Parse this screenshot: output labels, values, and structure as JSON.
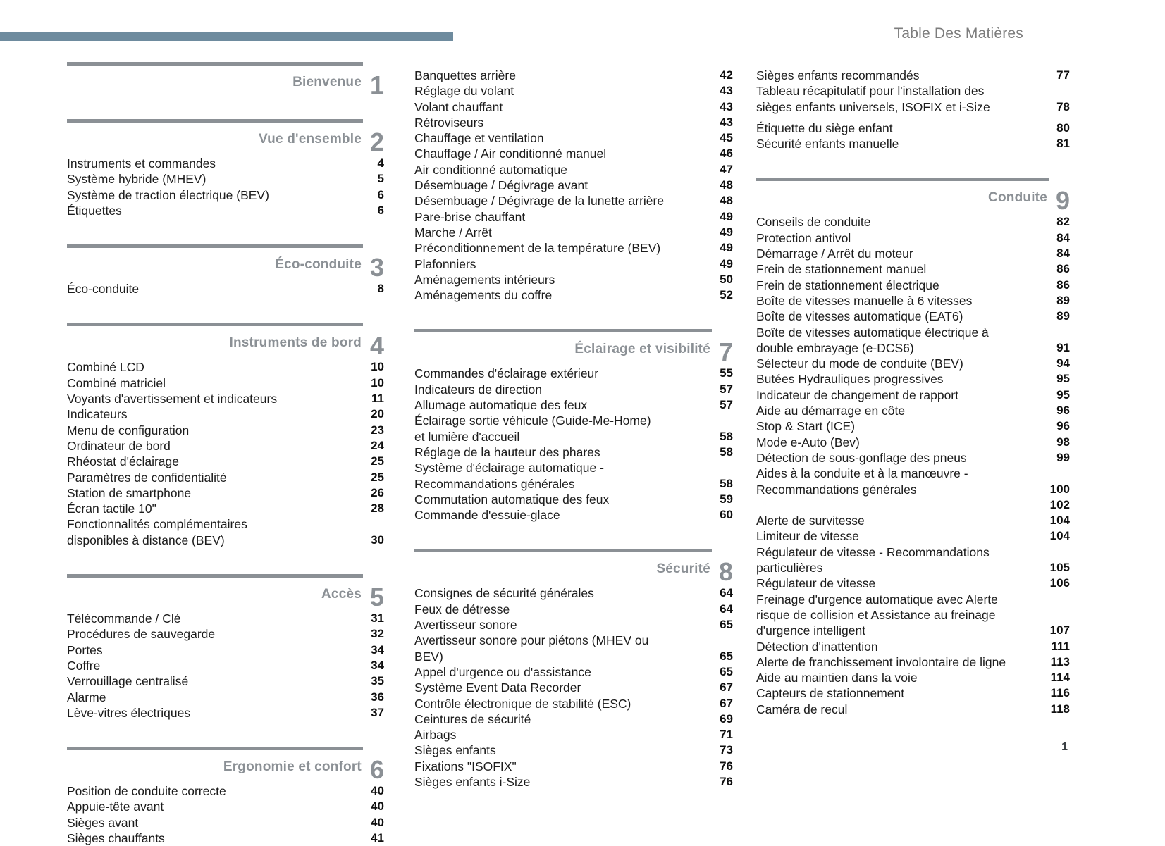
{
  "header": {
    "title": "Table Des Matières"
  },
  "footer": {
    "page_number": "1"
  },
  "colors": {
    "accent_bar": "#6e8b9e",
    "section_gray": "#8b9095",
    "item_text": "#1c1c1c"
  },
  "columns": [
    {
      "blocks": [
        {
          "type": "section",
          "title": "Bienvenue",
          "num": "1",
          "items": []
        },
        {
          "type": "section",
          "title": "Vue d'ensemble",
          "num": "2",
          "items": [
            {
              "label": "Instruments et commandes",
              "page": "4"
            },
            {
              "label": "Système hybride (MHEV)",
              "page": "5"
            },
            {
              "label": "Système de traction électrique (BEV)",
              "page": "6"
            },
            {
              "label": "Étiquettes",
              "page": "6"
            }
          ]
        },
        {
          "type": "section",
          "title": "Éco-conduite",
          "num": "3",
          "items": [
            {
              "label": "Éco-conduite",
              "page": "8"
            }
          ]
        },
        {
          "type": "section",
          "title": "Instruments de bord",
          "num": "4",
          "items": [
            {
              "label": "Combiné LCD",
              "page": "10"
            },
            {
              "label": "Combiné matriciel",
              "page": "10"
            },
            {
              "label": "Voyants d'avertissement et indicateurs",
              "page": "11"
            },
            {
              "label": "Indicateurs",
              "page": "20"
            },
            {
              "label": "Menu de configuration",
              "page": "23"
            },
            {
              "label": "Ordinateur de bord",
              "page": "24"
            },
            {
              "label": "Rhéostat d'éclairage",
              "page": "25"
            },
            {
              "label": "Paramètres de confidentialité",
              "page": "25"
            },
            {
              "label": "Station de smartphone",
              "page": "26"
            },
            {
              "label": "Écran tactile 10\"",
              "page": "28"
            },
            {
              "label": "Fonctionnalités complémentaires\ndisponibles à distance (BEV)",
              "page": "30"
            }
          ]
        },
        {
          "type": "section",
          "title": "Accès",
          "num": "5",
          "items": [
            {
              "label": "Télécommande / Clé",
              "page": "31"
            },
            {
              "label": "Procédures de sauvegarde",
              "page": "32"
            },
            {
              "label": "Portes",
              "page": "34"
            },
            {
              "label": "Coffre",
              "page": "34"
            },
            {
              "label": "Verrouillage centralisé",
              "page": "35"
            },
            {
              "label": "Alarme",
              "page": "36"
            },
            {
              "label": "Lève-vitres électriques",
              "page": "37"
            }
          ]
        },
        {
          "type": "section",
          "title": "Ergonomie et confort",
          "num": "6",
          "items": [
            {
              "label": "Position de conduite correcte",
              "page": "40"
            },
            {
              "label": "Appuie-tête avant",
              "page": "40"
            },
            {
              "label": "Sièges avant",
              "page": "40"
            },
            {
              "label": "Sièges chauffants",
              "page": "41"
            }
          ]
        }
      ]
    },
    {
      "blocks": [
        {
          "type": "continuation",
          "items": [
            {
              "label": "Banquettes arrière",
              "page": "42"
            },
            {
              "label": "Réglage du volant",
              "page": "43"
            },
            {
              "label": "Volant chauffant",
              "page": "43"
            },
            {
              "label": "Rétroviseurs",
              "page": "43"
            },
            {
              "label": "Chauffage et ventilation",
              "page": "45"
            },
            {
              "label": "Chauffage / Air conditionné manuel",
              "page": "46"
            },
            {
              "label": "Air conditionné automatique",
              "page": "47"
            },
            {
              "label": "Désembuage / Dégivrage avant",
              "page": "48"
            },
            {
              "label": "Désembuage / Dégivrage de la lunette arrière",
              "page": "48"
            },
            {
              "label": "Pare-brise chauffant",
              "page": "49"
            },
            {
              "label": "Marche / Arrêt",
              "page": "49"
            },
            {
              "label": "Préconditionnement de la température (BEV)",
              "page": "49"
            },
            {
              "label": "Plafonniers",
              "page": "49"
            },
            {
              "label": "Aménagements intérieurs",
              "page": "50"
            },
            {
              "label": "Aménagements du coffre",
              "page": "52"
            }
          ]
        },
        {
          "type": "section",
          "title": "Éclairage et visibilité",
          "num": "7",
          "items": [
            {
              "label": "Commandes d'éclairage extérieur",
              "page": "55"
            },
            {
              "label": "Indicateurs de direction",
              "page": "57"
            },
            {
              "label": "Allumage automatique des feux",
              "page": "57"
            },
            {
              "label": "Éclairage sortie véhicule (Guide-Me-Home)\net lumière d'accueil",
              "page": "58"
            },
            {
              "label": "Réglage de la hauteur des phares",
              "page": "58"
            },
            {
              "label": "Système d'éclairage automatique -\nRecommandations générales",
              "page": "58"
            },
            {
              "label": "Commutation automatique des feux",
              "page": "59"
            },
            {
              "label": "Commande d'essuie-glace",
              "page": "60"
            }
          ]
        },
        {
          "type": "section",
          "title": "Sécurité",
          "num": "8",
          "items": [
            {
              "label": "Consignes de sécurité générales",
              "page": "64"
            },
            {
              "label": "Feux de détresse",
              "page": "64"
            },
            {
              "label": "Avertisseur sonore",
              "page": "65"
            },
            {
              "label": "Avertisseur sonore pour piétons (MHEV ou\nBEV)",
              "page": "65"
            },
            {
              "label": "Appel d'urgence ou d'assistance",
              "page": "65"
            },
            {
              "label": "Système Event Data Recorder",
              "page": "67"
            },
            {
              "label": "Contrôle électronique de stabilité (ESC)",
              "page": "67"
            },
            {
              "label": "Ceintures de sécurité",
              "page": "69"
            },
            {
              "label": "Airbags",
              "page": "71"
            },
            {
              "label": "Sièges enfants",
              "page": "73"
            },
            {
              "label": "Fixations \"ISOFIX\"",
              "page": "76"
            },
            {
              "label": "Sièges enfants i-Size",
              "page": "76"
            }
          ]
        }
      ]
    },
    {
      "blocks": [
        {
          "type": "continuation",
          "items": [
            {
              "label": "Sièges enfants recommandés",
              "page": "77"
            },
            {
              "label": "Tableau récapitulatif pour l'installation des\nsièges enfants universels, ISOFIX et i-Size",
              "page": "78"
            },
            {
              "label": "Étiquette du siège enfant",
              "page": "80",
              "space_before": true
            },
            {
              "label": "Sécurité enfants manuelle",
              "page": "81"
            }
          ]
        },
        {
          "type": "section",
          "title": "Conduite",
          "num": "9",
          "items": [
            {
              "label": "Conseils de conduite",
              "page": "82"
            },
            {
              "label": "Protection antivol",
              "page": "84"
            },
            {
              "label": "Démarrage / Arrêt du moteur",
              "page": "84"
            },
            {
              "label": "Frein de stationnement manuel",
              "page": "86"
            },
            {
              "label": "Frein de stationnement électrique",
              "page": "86"
            },
            {
              "label": "Boîte de vitesses manuelle à 6 vitesses",
              "page": "89"
            },
            {
              "label": "Boîte de vitesses automatique (EAT6)",
              "page": "89"
            },
            {
              "label": "Boîte de vitesses automatique électrique à\ndouble embrayage (e-DCS6)",
              "page": "91"
            },
            {
              "label": "Sélecteur du mode de conduite (BEV)",
              "page": "94"
            },
            {
              "label": "Butées Hydrauliques progressives",
              "page": "95"
            },
            {
              "label": "Indicateur de changement de rapport",
              "page": "95"
            },
            {
              "label": "Aide au démarrage en côte",
              "page": "96"
            },
            {
              "label": "Stop & Start (ICE)",
              "page": "96"
            },
            {
              "label": "Mode e-Auto (Bev)",
              "page": "98"
            },
            {
              "label": "Détection de sous-gonflage des pneus",
              "page": "99"
            },
            {
              "label": "Aides à la conduite et à la manœuvre -\nRecommandations générales",
              "page": "100"
            },
            {
              "label": "",
              "page": "102"
            },
            {
              "label": "Alerte de survitesse",
              "page": "104"
            },
            {
              "label": "Limiteur de vitesse",
              "page": "104"
            },
            {
              "label": "Régulateur de vitesse - Recommandations\nparticulières",
              "page": "105"
            },
            {
              "label": "Régulateur de vitesse",
              "page": "106"
            },
            {
              "label": "Freinage d'urgence automatique avec Alerte\nrisque de collision et Assistance au freinage\nd'urgence intelligent",
              "page": "107"
            },
            {
              "label": "Détection d'inattention",
              "page": "111"
            },
            {
              "label": "Alerte de franchissement involontaire de ligne",
              "page": "113"
            },
            {
              "label": "Aide au maintien dans la voie",
              "page": "114"
            },
            {
              "label": "Capteurs de stationnement",
              "page": "116"
            },
            {
              "label": "Caméra de recul",
              "page": "118"
            }
          ]
        }
      ]
    }
  ]
}
